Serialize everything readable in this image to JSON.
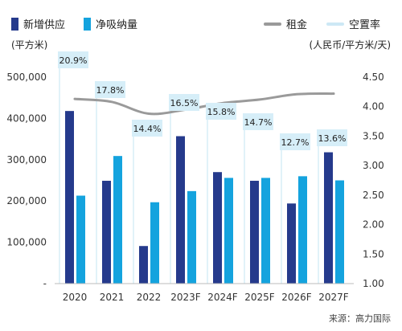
{
  "legend": {
    "supply": "新增供应",
    "absorption": "净吸纳量",
    "rent": "租金",
    "vacancy": "空置率"
  },
  "left_unit": "(平方米)",
  "right_unit": "(人民币/平方米/天)",
  "source": "来源：高力国际",
  "colors": {
    "supply": "#253a8c",
    "absorption": "#14a3de",
    "rent": "#9a9a9a",
    "vacancy_line": "#cde8f5",
    "label_bg": "#d6eef8"
  },
  "chart_data": {
    "type": "bar",
    "categories": [
      "2020",
      "2021",
      "2022",
      "2023F",
      "2024F",
      "2025F",
      "2026F",
      "2027F"
    ],
    "series": [
      {
        "name": "新增供应",
        "type": "bar",
        "axis": "left",
        "values": [
          418000,
          249000,
          91000,
          357000,
          270000,
          249000,
          194000,
          318000
        ]
      },
      {
        "name": "净吸纳量",
        "type": "bar",
        "axis": "left",
        "values": [
          213000,
          309000,
          197000,
          224000,
          256000,
          256000,
          260000,
          250000
        ]
      },
      {
        "name": "租金",
        "type": "line",
        "axis": "right",
        "values": [
          4.13,
          4.08,
          3.88,
          3.95,
          4.06,
          4.12,
          4.21,
          4.22
        ]
      },
      {
        "name": "空置率",
        "type": "label",
        "values": [
          "20.9%",
          "17.8%",
          "14.4%",
          "16.5%",
          "15.8%",
          "14.7%",
          "12.7%",
          "13.6%"
        ]
      }
    ],
    "left_axis": {
      "ticks": [
        "500,000",
        "400,000",
        "300,000",
        "200,000",
        "100,000",
        "-"
      ],
      "ylim": [
        0,
        500000
      ]
    },
    "right_axis": {
      "ticks": [
        "4.50",
        "4.00",
        "3.50",
        "3.00",
        "2.50",
        "2.00",
        "1.50",
        "1.00"
      ],
      "ylim": [
        1.0,
        4.5
      ]
    },
    "vacancy_values": [
      20.9,
      17.8,
      14.4,
      16.5,
      15.8,
      14.7,
      12.7,
      13.6
    ],
    "legend_position": "top"
  }
}
